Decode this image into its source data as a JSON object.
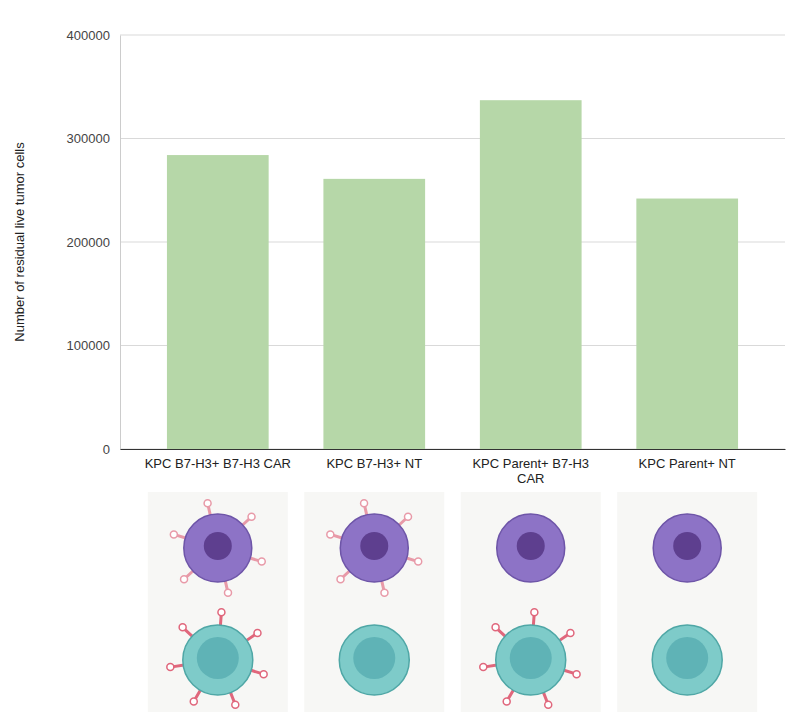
{
  "chart_data": {
    "type": "bar",
    "y_label": "Number of residual live tumor cells",
    "categories": [
      "KPC B7-H3+ B7-H3 CAR",
      "KPC B7-H3+ NT",
      "KPC Parent+ B7-H3 CAR",
      "KPC Parent+ NT"
    ],
    "values": [
      284000,
      261000,
      337000,
      242000
    ],
    "color": "#b6d7a8",
    "ylim": [
      0,
      400000
    ],
    "yticks": [
      0,
      100000,
      200000,
      300000,
      400000
    ],
    "grid": true
  }
}
